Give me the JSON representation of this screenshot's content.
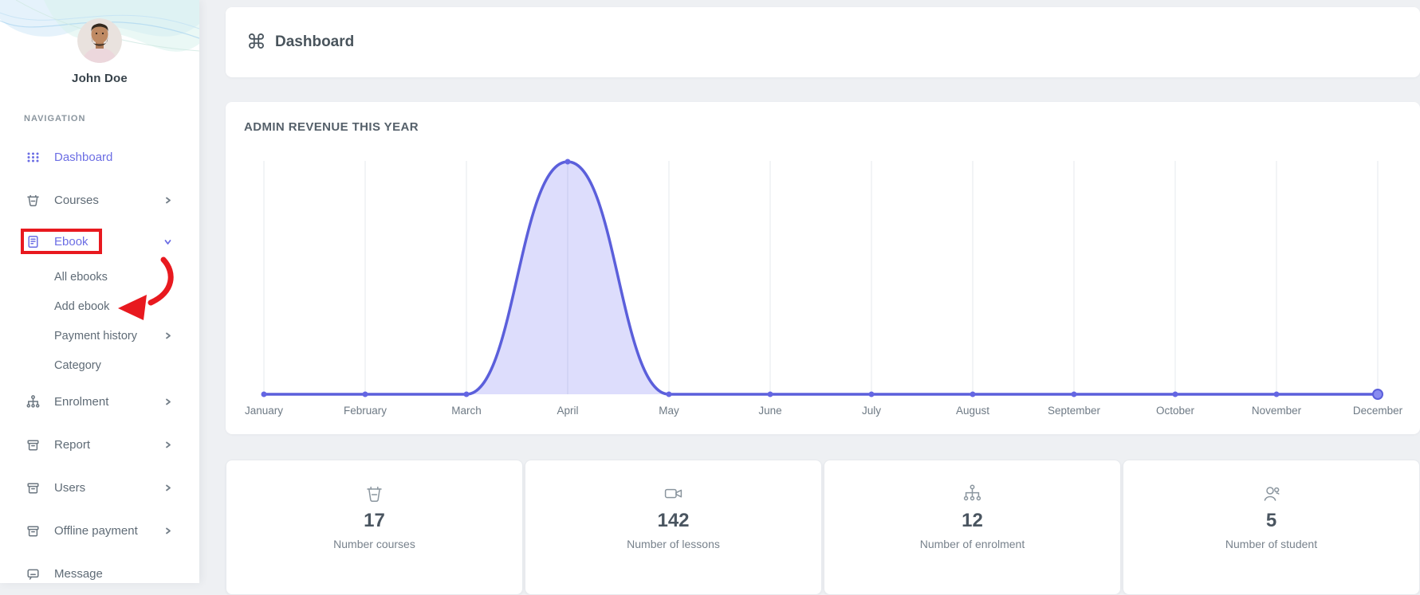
{
  "header": {
    "title": "Dashboard",
    "icon": "command-icon"
  },
  "sidebar": {
    "user_name": "John Doe",
    "section_label": "NAVIGATION",
    "items": [
      {
        "label": "Dashboard",
        "icon": "grid-dots",
        "state": "active"
      },
      {
        "label": "Courses",
        "icon": "basket",
        "expand": "right"
      },
      {
        "label": "Ebook",
        "icon": "book",
        "state": "active",
        "expand": "down",
        "annotated": "red-box"
      },
      {
        "label": "All ebooks",
        "child": true
      },
      {
        "label": "Add ebook",
        "child": true,
        "annotated": "red-arrow"
      },
      {
        "label": "Payment history",
        "child": true,
        "expand": "right"
      },
      {
        "label": "Category",
        "child": true
      },
      {
        "label": "Enrolment",
        "icon": "sitemap",
        "expand": "right"
      },
      {
        "label": "Report",
        "icon": "archive",
        "expand": "right"
      },
      {
        "label": "Users",
        "icon": "archive",
        "expand": "right"
      },
      {
        "label": "Offline payment",
        "icon": "archive",
        "expand": "right"
      },
      {
        "label": "Message",
        "icon": "chat"
      }
    ]
  },
  "chart_card": {
    "title": "ADMIN REVENUE THIS YEAR"
  },
  "chart_data": {
    "type": "area",
    "title": "ADMIN REVENUE THIS YEAR",
    "categories": [
      "January",
      "February",
      "March",
      "April",
      "May",
      "June",
      "July",
      "August",
      "September",
      "October",
      "November",
      "December"
    ],
    "series": [
      {
        "name": "Admin revenue",
        "values": [
          0,
          0,
          0,
          1,
          0,
          0,
          0,
          0,
          0,
          0,
          0,
          0
        ]
      }
    ],
    "y_axis_visible": false,
    "values_are_relative": true,
    "peak_month": "April",
    "grid": "vertical-only",
    "line_color": "#5b5fdb",
    "fill_color": "rgba(99,102,241,0.22)",
    "marker_color": "#6466e3",
    "end_marker_color": "#898cf0",
    "grid_color": "#eef0f4",
    "label_color": "#6e7a85"
  },
  "stats": [
    {
      "icon": "basket",
      "value": "17",
      "label": "Number courses"
    },
    {
      "icon": "video-camera",
      "value": "142",
      "label": "Number of lessons"
    },
    {
      "icon": "sitemap",
      "value": "12",
      "label": "Number of enrolment"
    },
    {
      "icon": "user",
      "value": "5",
      "label": "Number of student"
    }
  ],
  "colors": {
    "accent": "#6c6ee4",
    "annotation_red": "#e8191f",
    "background": "#eef0f3",
    "card": "#ffffff",
    "text_dark": "#48535c",
    "text_muted": "#7a848e"
  }
}
